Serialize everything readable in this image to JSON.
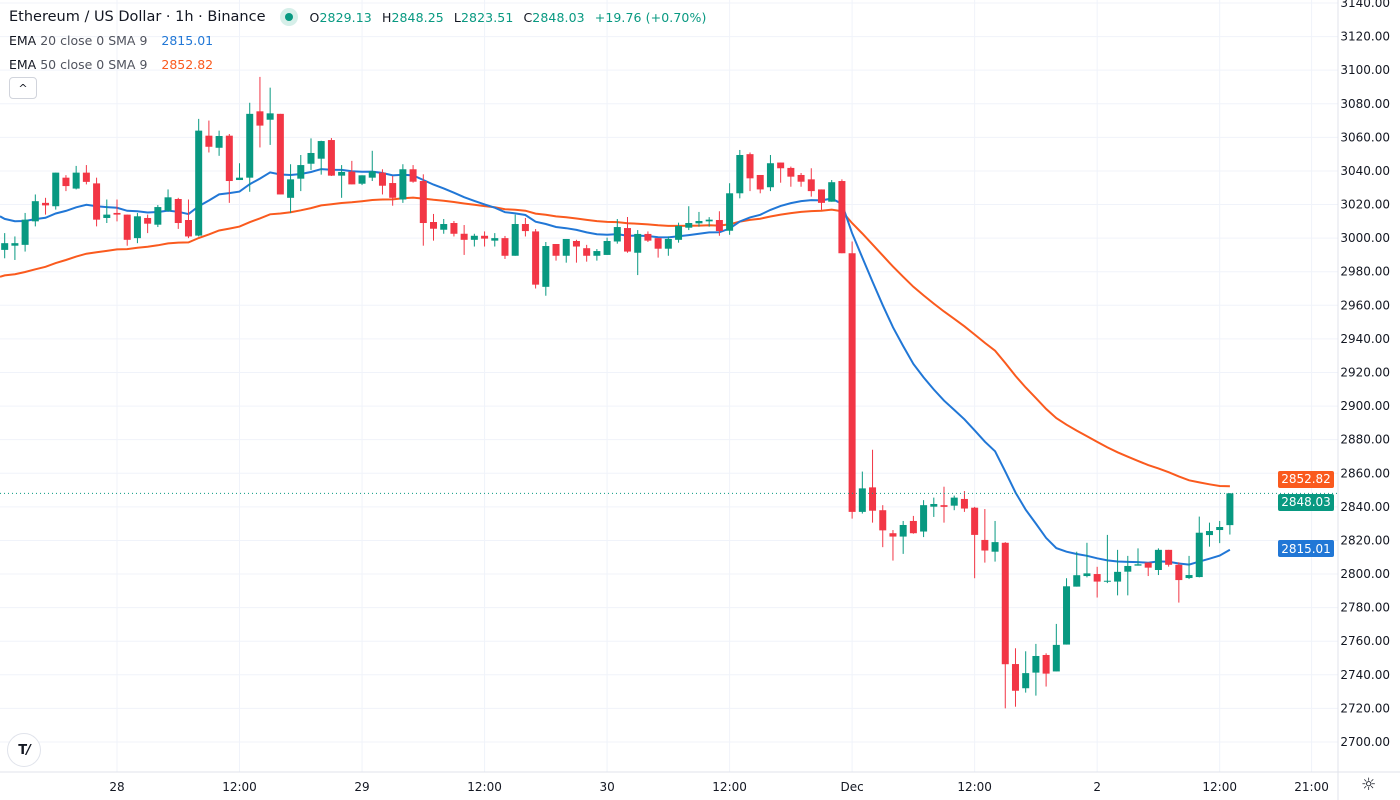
{
  "header": {
    "symbol_title": "Ethereum / US Dollar · 1h · Binance",
    "open_label": "O",
    "open": "2829.13",
    "high_label": "H",
    "high": "2848.25",
    "low_label": "L",
    "low": "2823.51",
    "close_label": "C",
    "close": "2848.03",
    "change": "+19.76 (+0.70%)"
  },
  "indicators": [
    {
      "name": "EMA",
      "params": "20 close 0 SMA 9",
      "value": "2815.01",
      "color": "#2177d6"
    },
    {
      "name": "EMA",
      "params": "50 close 0 SMA 9",
      "value": "2852.82",
      "color": "#fa5a1e"
    }
  ],
  "collapse_icon": "^",
  "logo_text": "TV",
  "settings_icon": "☼",
  "price_labels": {
    "ema50": "2852.82",
    "last": "2848.03",
    "ema20": "2815.01"
  },
  "colors": {
    "up": "#089981",
    "down": "#f23645",
    "ema20": "#2177d6",
    "ema50": "#fa5a1e",
    "grid": "#f0f3fa"
  },
  "chart_data": {
    "type": "candlestick",
    "title": "Ethereum / US Dollar · 1h · Binance",
    "interval": "1h",
    "ylim": [
      2690,
      3145
    ],
    "y_ticks": [
      "2700.00",
      "2720.00",
      "2740.00",
      "2760.00",
      "2780.00",
      "2800.00",
      "2820.00",
      "2840.00",
      "2860.00",
      "2880.00",
      "2900.00",
      "2920.00",
      "2940.00",
      "2960.00",
      "2980.00",
      "3000.00",
      "3020.00",
      "3040.00",
      "3060.00",
      "3080.00",
      "3100.00",
      "3120.00",
      "3140.00"
    ],
    "x_ticks": [
      {
        "label": "28",
        "t": 11
      },
      {
        "label": "12:00",
        "t": 23
      },
      {
        "label": "29",
        "t": 35
      },
      {
        "label": "12:00",
        "t": 47
      },
      {
        "label": "30",
        "t": 59
      },
      {
        "label": "12:00",
        "t": 71
      },
      {
        "label": "Dec",
        "t": 83
      },
      {
        "label": "12:00",
        "t": 95
      },
      {
        "label": "2",
        "t": 107
      },
      {
        "label": "12:00",
        "t": 119
      },
      {
        "label": "21:00",
        "t": 128
      }
    ],
    "ema_seed": {
      "ema20": 3013,
      "ema50": 2977
    },
    "ohlc": [
      [
        2993,
        3003,
        2988,
        2997
      ],
      [
        2995.5,
        3001,
        2987,
        2997
      ],
      [
        2996,
        3015,
        2992,
        3011
      ],
      [
        3010,
        3026,
        3007,
        3022
      ],
      [
        3021,
        3024,
        3014,
        3019.5
      ],
      [
        3019,
        3039,
        3017,
        3039
      ],
      [
        3036,
        3037.5,
        3028,
        3031
      ],
      [
        3029.5,
        3043,
        3029,
        3039
      ],
      [
        3039,
        3043.5,
        3032,
        3033.5
      ],
      [
        3032.6,
        3036,
        3007,
        3011
      ],
      [
        3012,
        3023,
        3009,
        3014
      ],
      [
        3015,
        3023,
        3010,
        3014
      ],
      [
        3014,
        3014,
        2995.5,
        2999
      ],
      [
        3000,
        3015,
        2997,
        3013
      ],
      [
        3012,
        3014,
        3003,
        3008.6
      ],
      [
        3008,
        3019.7,
        3006.6,
        3018.5
      ],
      [
        3016.3,
        3029,
        3015.7,
        3024.3
      ],
      [
        3023.3,
        3024,
        3005.5,
        3009
      ],
      [
        3010.8,
        3023,
        3000,
        3001
      ],
      [
        3001.5,
        3071,
        3001,
        3064
      ],
      [
        3061,
        3070,
        3051,
        3054.4
      ],
      [
        3053.8,
        3064,
        3049,
        3060.8
      ],
      [
        3061,
        3062,
        3021,
        3034
      ],
      [
        3034.6,
        3044.6,
        3034.6,
        3036
      ],
      [
        3036,
        3080.6,
        3027.6,
        3074
      ],
      [
        3075.5,
        3096,
        3054,
        3067
      ],
      [
        3070.5,
        3089.6,
        3055.5,
        3074.3
      ],
      [
        3074,
        3074,
        3026,
        3026
      ],
      [
        3024,
        3044,
        3015,
        3035
      ],
      [
        3035.4,
        3049.5,
        3028,
        3043.5
      ],
      [
        3044.3,
        3059.4,
        3040.6,
        3050.7
      ],
      [
        3047.3,
        3058,
        3037.8,
        3057.8
      ],
      [
        3058.4,
        3059.6,
        3037,
        3037.2
      ],
      [
        3037.2,
        3043.5,
        3024,
        3039.4
      ],
      [
        3039.6,
        3046,
        3032,
        3032
      ],
      [
        3032.4,
        3037.4,
        3031.6,
        3037.4
      ],
      [
        3036,
        3052,
        3034,
        3039.8
      ],
      [
        3039,
        3041,
        3026,
        3031.2
      ],
      [
        3032.8,
        3037,
        3019.3,
        3024
      ],
      [
        3023,
        3044,
        3021,
        3041
      ],
      [
        3041,
        3043.5,
        3033,
        3033.6
      ],
      [
        3034,
        3038,
        2995.5,
        3009
      ],
      [
        3009.6,
        3014.4,
        2998.5,
        3005.6
      ],
      [
        3005,
        3011.4,
        3002.6,
        3008.4
      ],
      [
        3009,
        3010.2,
        3001,
        3002.6
      ],
      [
        3002.6,
        3007.8,
        2990,
        2999
      ],
      [
        2999,
        3002.6,
        2995,
        3001.4
      ],
      [
        3001.4,
        3004,
        2995,
        2999.7
      ],
      [
        2998.5,
        3003,
        2995,
        3000
      ],
      [
        3000,
        3001.3,
        2987.6,
        2989.5
      ],
      [
        2989.5,
        3014,
        2989.5,
        3008.4
      ],
      [
        3008.4,
        3012,
        3001,
        3004.2
      ],
      [
        3004,
        3005.4,
        2970,
        2972.3
      ],
      [
        2971,
        2997.7,
        2965.7,
        2995.3
      ],
      [
        2996.5,
        2996.5,
        2986.6,
        2989.5
      ],
      [
        2989.5,
        2999.5,
        2985.4,
        2999.5
      ],
      [
        2998.3,
        2999,
        2985.4,
        2995
      ],
      [
        2994,
        2996,
        2986,
        2989.5
      ],
      [
        2989.5,
        2993.5,
        2986.6,
        2992.3
      ],
      [
        2990,
        3000.3,
        2990,
        2998.3
      ],
      [
        2998,
        3011.4,
        2996.7,
        3006.6
      ],
      [
        3006,
        3012.6,
        2991.3,
        2992
      ],
      [
        2991.3,
        3004.8,
        2978,
        3002.5
      ],
      [
        3002.5,
        3004,
        2997.7,
        2998.5
      ],
      [
        3000,
        3000,
        2988.4,
        2993.7
      ],
      [
        2993.7,
        3001,
        2989.5,
        2999.5
      ],
      [
        2999,
        3009.2,
        2997.3,
        3007.2
      ],
      [
        3006.2,
        3019,
        3004.8,
        3009
      ],
      [
        3008.8,
        3015.6,
        3006.8,
        3010.2
      ],
      [
        3010,
        3012.5,
        3006.8,
        3011
      ],
      [
        3010.8,
        3016,
        3001.4,
        3004.2
      ],
      [
        3004.4,
        3032.7,
        3002,
        3026.7
      ],
      [
        3026.7,
        3052.5,
        3023.7,
        3049.5
      ],
      [
        3050,
        3051,
        3028,
        3035.6
      ],
      [
        3037.6,
        3037.6,
        3026.7,
        3029
      ],
      [
        3030.3,
        3049.5,
        3028,
        3044.6
      ],
      [
        3045,
        3045,
        3033,
        3041.6
      ],
      [
        3041.8,
        3042.6,
        3030.6,
        3036.6
      ],
      [
        3037.6,
        3038.8,
        3030.6,
        3033.6
      ],
      [
        3035,
        3041.6,
        3024.7,
        3028
      ],
      [
        3029,
        3029,
        3016.8,
        3021
      ],
      [
        3021.7,
        3034.6,
        3021.7,
        3033.3
      ],
      [
        3034,
        3035,
        2991,
        2991
      ],
      [
        2991,
        2998,
        2833,
        2837
      ],
      [
        2837,
        2861,
        2836,
        2851
      ],
      [
        2851.6,
        2874,
        2830.6,
        2837.7
      ],
      [
        2838,
        2841,
        2816,
        2826
      ],
      [
        2824.3,
        2826.2,
        2808,
        2822.3
      ],
      [
        2822.3,
        2831.6,
        2812,
        2829.2
      ],
      [
        2831.6,
        2834.6,
        2824,
        2824.3
      ],
      [
        2825.3,
        2844,
        2822,
        2841
      ],
      [
        2840.1,
        2845.5,
        2834,
        2841.7
      ],
      [
        2841,
        2852,
        2830.6,
        2840
      ],
      [
        2840.7,
        2846.7,
        2838,
        2845.5
      ],
      [
        2844.7,
        2849.4,
        2837,
        2839
      ],
      [
        2839.5,
        2840,
        2797.5,
        2823.3
      ],
      [
        2820.3,
        2838.7,
        2806.8,
        2814
      ],
      [
        2813.3,
        2831.6,
        2807.4,
        2819
      ],
      [
        2818.6,
        2819,
        2720,
        2746.3
      ],
      [
        2746.4,
        2755.8,
        2721,
        2730.5
      ],
      [
        2732,
        2754,
        2729.4,
        2741
      ],
      [
        2741.3,
        2758.4,
        2727.6,
        2751.2
      ],
      [
        2751.8,
        2752.8,
        2733,
        2740.7
      ],
      [
        2742,
        2770.3,
        2742,
        2757.8
      ],
      [
        2758,
        2797.5,
        2758,
        2792.7
      ],
      [
        2792.5,
        2813.3,
        2792.5,
        2799.3
      ],
      [
        2798.8,
        2818.6,
        2798,
        2800.4
      ],
      [
        2800,
        2804.3,
        2786,
        2795.5
      ],
      [
        2795.5,
        2823.3,
        2794.6,
        2796
      ],
      [
        2795.5,
        2814.4,
        2787.3,
        2801.3
      ],
      [
        2801.4,
        2810.8,
        2787.3,
        2804.8
      ],
      [
        2805,
        2815.3,
        2805,
        2805.8
      ],
      [
        2806.8,
        2807,
        2798.8,
        2803.8
      ],
      [
        2802.4,
        2815.3,
        2799.4,
        2814.4
      ],
      [
        2814.4,
        2814.4,
        2804.4,
        2805.5
      ],
      [
        2805.5,
        2807,
        2783,
        2796.4
      ],
      [
        2797.6,
        2810.8,
        2797,
        2799.4
      ],
      [
        2798.2,
        2834.2,
        2798,
        2824.6
      ],
      [
        2823.2,
        2830.6,
        2816.3,
        2825.6
      ],
      [
        2826.2,
        2831.6,
        2818.4,
        2828
      ],
      [
        2829.13,
        2848.25,
        2823.51,
        2848.03
      ]
    ]
  }
}
